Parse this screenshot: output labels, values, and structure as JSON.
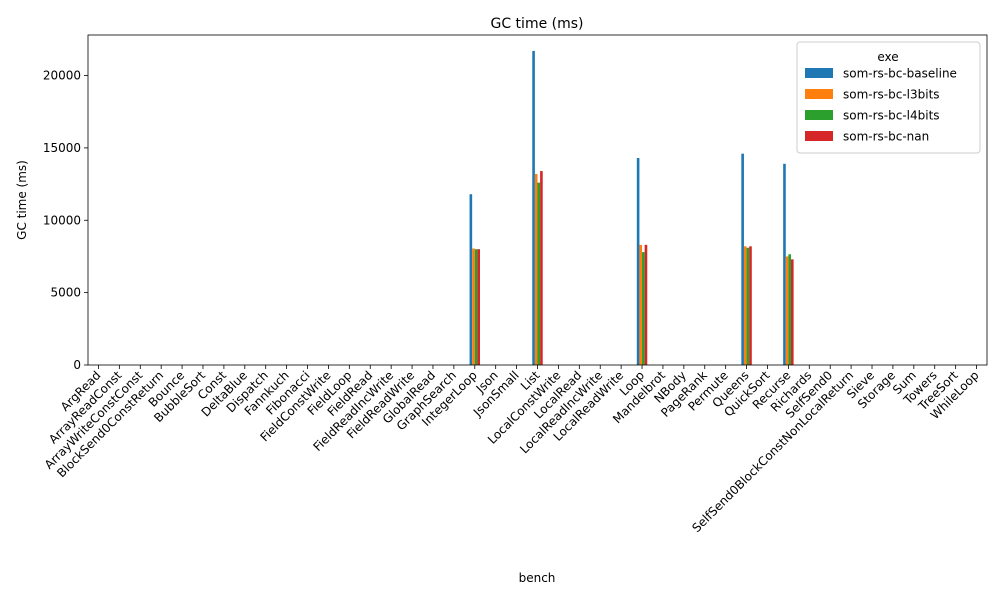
{
  "chart_data": {
    "type": "bar",
    "title": "GC time (ms)",
    "xlabel": "bench",
    "ylabel": "GC time (ms)",
    "ylim": [
      0,
      22800
    ],
    "yticks": [
      0,
      5000,
      10000,
      15000,
      20000
    ],
    "grid": false,
    "legend": {
      "title": "exe",
      "placement": "top-right"
    },
    "categories": [
      "ArgRead",
      "ArrayReadConst",
      "ArrayWriteConstConst",
      "BlockSend0ConstReturn",
      "Bounce",
      "BubbleSort",
      "Const",
      "DeltaBlue",
      "Dispatch",
      "Fannkuch",
      "Fibonacci",
      "FieldConstWrite",
      "FieldLoop",
      "FieldRead",
      "FieldReadIncWrite",
      "FieldReadWrite",
      "GlobalRead",
      "GraphSearch",
      "IntegerLoop",
      "Json",
      "JsonSmall",
      "List",
      "LocalConstWrite",
      "LocalRead",
      "LocalReadIncWrite",
      "LocalReadWrite",
      "Loop",
      "Mandelbrot",
      "NBody",
      "PageRank",
      "Permute",
      "Queens",
      "QuickSort",
      "Recurse",
      "Richards",
      "SelfSend0",
      "SelfSend0BlockConstNonLocalReturn",
      "Sieve",
      "Storage",
      "Sum",
      "Towers",
      "TreeSort",
      "WhileLoop"
    ],
    "series": [
      {
        "name": "som-rs-bc-baseline",
        "color": "#1f77b4",
        "values": [
          0,
          0,
          0,
          0,
          0,
          0,
          0,
          0,
          0,
          0,
          0,
          0,
          0,
          0,
          0,
          0,
          0,
          0,
          11800,
          0,
          0,
          21700,
          0,
          0,
          0,
          0,
          14300,
          0,
          0,
          0,
          0,
          14600,
          0,
          13900,
          0,
          0,
          0,
          0,
          0,
          0,
          0,
          0,
          0
        ]
      },
      {
        "name": "som-rs-bc-l3bits",
        "color": "#ff7f0e",
        "values": [
          0,
          0,
          0,
          0,
          0,
          0,
          0,
          0,
          0,
          0,
          0,
          0,
          0,
          0,
          0,
          0,
          0,
          0,
          8050,
          0,
          0,
          13200,
          0,
          0,
          0,
          0,
          8300,
          0,
          0,
          0,
          0,
          8200,
          0,
          7500,
          0,
          0,
          0,
          0,
          0,
          0,
          0,
          0,
          0
        ]
      },
      {
        "name": "som-rs-bc-l4bits",
        "color": "#2ca02c",
        "values": [
          0,
          0,
          0,
          0,
          0,
          0,
          0,
          0,
          0,
          0,
          0,
          0,
          0,
          0,
          0,
          0,
          0,
          0,
          8000,
          0,
          0,
          12600,
          0,
          0,
          0,
          0,
          7800,
          0,
          0,
          0,
          0,
          8100,
          0,
          7650,
          0,
          0,
          0,
          0,
          0,
          0,
          0,
          0,
          0
        ]
      },
      {
        "name": "som-rs-bc-nan",
        "color": "#d62728",
        "values": [
          0,
          0,
          0,
          0,
          0,
          0,
          0,
          0,
          0,
          0,
          0,
          0,
          0,
          0,
          0,
          0,
          0,
          0,
          8000,
          0,
          0,
          13400,
          0,
          0,
          0,
          0,
          8300,
          0,
          0,
          0,
          0,
          8200,
          0,
          7300,
          0,
          0,
          0,
          0,
          0,
          0,
          0,
          0,
          0
        ]
      }
    ]
  }
}
